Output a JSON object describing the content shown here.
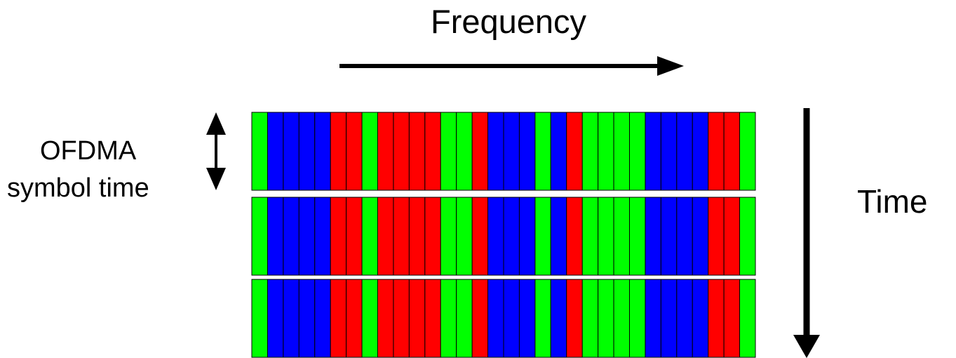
{
  "labels": {
    "frequency": "Frequency",
    "time": "Time",
    "ofdma_line1": "OFDMA",
    "ofdma_line2": "symbol time"
  },
  "colors": {
    "G": "#00ff00",
    "B": "#0000ff",
    "R": "#ff0000",
    "stroke": "#000000"
  },
  "symbol_count": 3,
  "subcarrier_colors": [
    "G",
    "B",
    "B",
    "B",
    "B",
    "R",
    "R",
    "G",
    "R",
    "R",
    "R",
    "R",
    "G",
    "G",
    "R",
    "B",
    "B",
    "B",
    "G",
    "B",
    "R",
    "G",
    "G",
    "G",
    "G",
    "B",
    "B",
    "B",
    "B",
    "R",
    "R",
    "G"
  ]
}
